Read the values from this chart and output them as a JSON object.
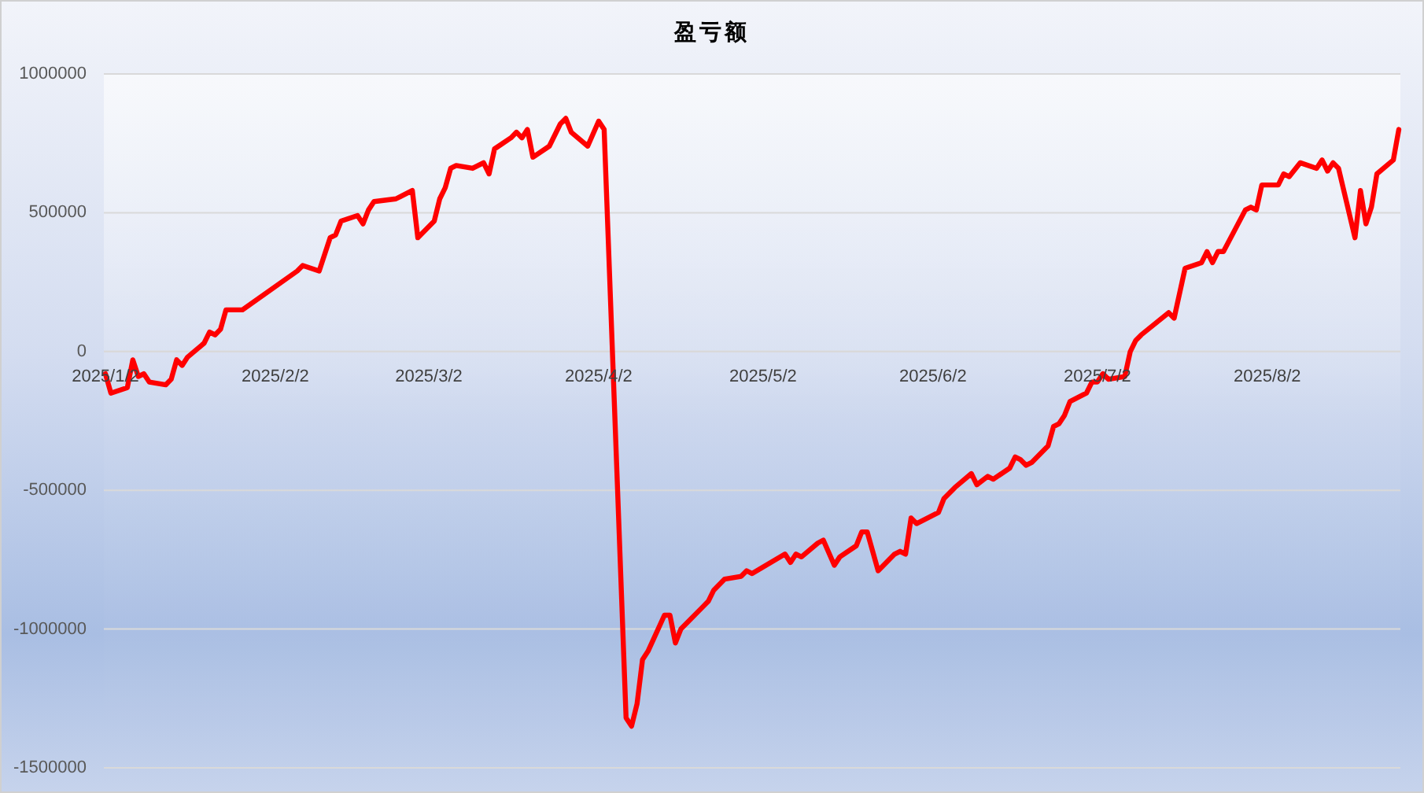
{
  "chart_data": {
    "type": "line",
    "title": "盈亏额",
    "x": [
      "2025-01-02",
      "2025-01-03",
      "2025-01-06",
      "2025-01-07",
      "2025-01-08",
      "2025-01-09",
      "2025-01-10",
      "2025-01-13",
      "2025-01-14",
      "2025-01-15",
      "2025-01-16",
      "2025-01-17",
      "2025-01-20",
      "2025-01-21",
      "2025-01-22",
      "2025-01-23",
      "2025-01-24",
      "2025-01-27",
      "2025-02-06",
      "2025-02-07",
      "2025-02-10",
      "2025-02-12",
      "2025-02-13",
      "2025-02-14",
      "2025-02-17",
      "2025-02-18",
      "2025-02-19",
      "2025-02-20",
      "2025-02-24",
      "2025-02-27",
      "2025-02-28",
      "2025-03-03",
      "2025-03-04",
      "2025-03-05",
      "2025-03-06",
      "2025-03-07",
      "2025-03-10",
      "2025-03-12",
      "2025-03-13",
      "2025-03-14",
      "2025-03-17",
      "2025-03-18",
      "2025-03-19",
      "2025-03-20",
      "2025-03-21",
      "2025-03-24",
      "2025-03-26",
      "2025-03-27",
      "2025-03-28",
      "2025-03-31",
      "2025-04-02",
      "2025-04-03",
      "2025-04-07",
      "2025-04-08",
      "2025-04-09",
      "2025-04-10",
      "2025-04-11",
      "2025-04-14",
      "2025-04-15",
      "2025-04-16",
      "2025-04-17",
      "2025-04-18",
      "2025-04-21",
      "2025-04-22",
      "2025-04-23",
      "2025-04-25",
      "2025-04-28",
      "2025-04-29",
      "2025-04-30",
      "2025-05-06",
      "2025-05-07",
      "2025-05-08",
      "2025-05-09",
      "2025-05-12",
      "2025-05-13",
      "2025-05-15",
      "2025-05-16",
      "2025-05-19",
      "2025-05-20",
      "2025-05-21",
      "2025-05-23",
      "2025-05-26",
      "2025-05-27",
      "2025-05-28",
      "2025-05-29",
      "2025-05-30",
      "2025-06-03",
      "2025-06-04",
      "2025-06-06",
      "2025-06-09",
      "2025-06-10",
      "2025-06-12",
      "2025-06-13",
      "2025-06-16",
      "2025-06-17",
      "2025-06-18",
      "2025-06-19",
      "2025-06-20",
      "2025-06-23",
      "2025-06-24",
      "2025-06-25",
      "2025-06-26",
      "2025-06-27",
      "2025-06-30",
      "2025-07-01",
      "2025-07-02",
      "2025-07-03",
      "2025-07-04",
      "2025-07-07",
      "2025-07-08",
      "2025-07-09",
      "2025-07-10",
      "2025-07-15",
      "2025-07-16",
      "2025-07-18",
      "2025-07-21",
      "2025-07-22",
      "2025-07-23",
      "2025-07-24",
      "2025-07-25",
      "2025-07-29",
      "2025-07-30",
      "2025-07-31",
      "2025-08-01",
      "2025-08-04",
      "2025-08-05",
      "2025-08-06",
      "2025-08-08",
      "2025-08-11",
      "2025-08-12",
      "2025-08-13",
      "2025-08-14",
      "2025-08-15",
      "2025-08-18",
      "2025-08-19",
      "2025-08-20",
      "2025-08-21",
      "2025-08-22",
      "2025-08-25",
      "2025-08-26"
    ],
    "series": [
      {
        "color": "#ff0000",
        "values": [
          -80000,
          -150000,
          -130000,
          -30000,
          -90000,
          -80000,
          -110000,
          -120000,
          -100000,
          -30000,
          -50000,
          -20000,
          30000,
          70000,
          60000,
          80000,
          150000,
          150000,
          290000,
          310000,
          290000,
          410000,
          420000,
          470000,
          490000,
          460000,
          510000,
          540000,
          550000,
          580000,
          410000,
          470000,
          550000,
          590000,
          660000,
          670000,
          660000,
          680000,
          640000,
          730000,
          770000,
          790000,
          770000,
          800000,
          700000,
          740000,
          820000,
          840000,
          790000,
          740000,
          830000,
          800000,
          -1320000,
          -1350000,
          -1270000,
          -1110000,
          -1080000,
          -950000,
          -950000,
          -1050000,
          -1000000,
          -980000,
          -920000,
          -900000,
          -860000,
          -820000,
          -810000,
          -790000,
          -800000,
          -730000,
          -760000,
          -730000,
          -740000,
          -690000,
          -680000,
          -770000,
          -740000,
          -700000,
          -650000,
          -650000,
          -790000,
          -730000,
          -720000,
          -730000,
          -600000,
          -620000,
          -580000,
          -530000,
          -490000,
          -440000,
          -480000,
          -450000,
          -460000,
          -420000,
          -380000,
          -390000,
          -410000,
          -400000,
          -340000,
          -270000,
          -260000,
          -230000,
          -180000,
          -150000,
          -110000,
          -110000,
          -80000,
          -100000,
          -90000,
          0,
          40000,
          60000,
          140000,
          120000,
          300000,
          320000,
          360000,
          320000,
          360000,
          360000,
          510000,
          520000,
          510000,
          600000,
          600000,
          640000,
          630000,
          680000,
          660000,
          690000,
          650000,
          680000,
          660000,
          410000,
          580000,
          460000,
          520000,
          640000,
          690000,
          800000
        ]
      }
    ],
    "xlim": [
      "2025-01-02",
      "2025-08-26"
    ],
    "xticks": [
      {
        "value": "2025-01-02",
        "label": "2025/1/2"
      },
      {
        "value": "2025-02-02",
        "label": "2025/2/2"
      },
      {
        "value": "2025-03-02",
        "label": "2025/3/2"
      },
      {
        "value": "2025-04-02",
        "label": "2025/4/2"
      },
      {
        "value": "2025-05-02",
        "label": "2025/5/2"
      },
      {
        "value": "2025-06-02",
        "label": "2025/6/2"
      },
      {
        "value": "2025-07-02",
        "label": "2025/7/2"
      },
      {
        "value": "2025-08-02",
        "label": "2025/8/2"
      }
    ],
    "ylim": [
      -1500000,
      1000000
    ],
    "yticks": [
      -1500000,
      -1000000,
      -500000,
      0,
      500000,
      1000000
    ],
    "grid": "y"
  }
}
